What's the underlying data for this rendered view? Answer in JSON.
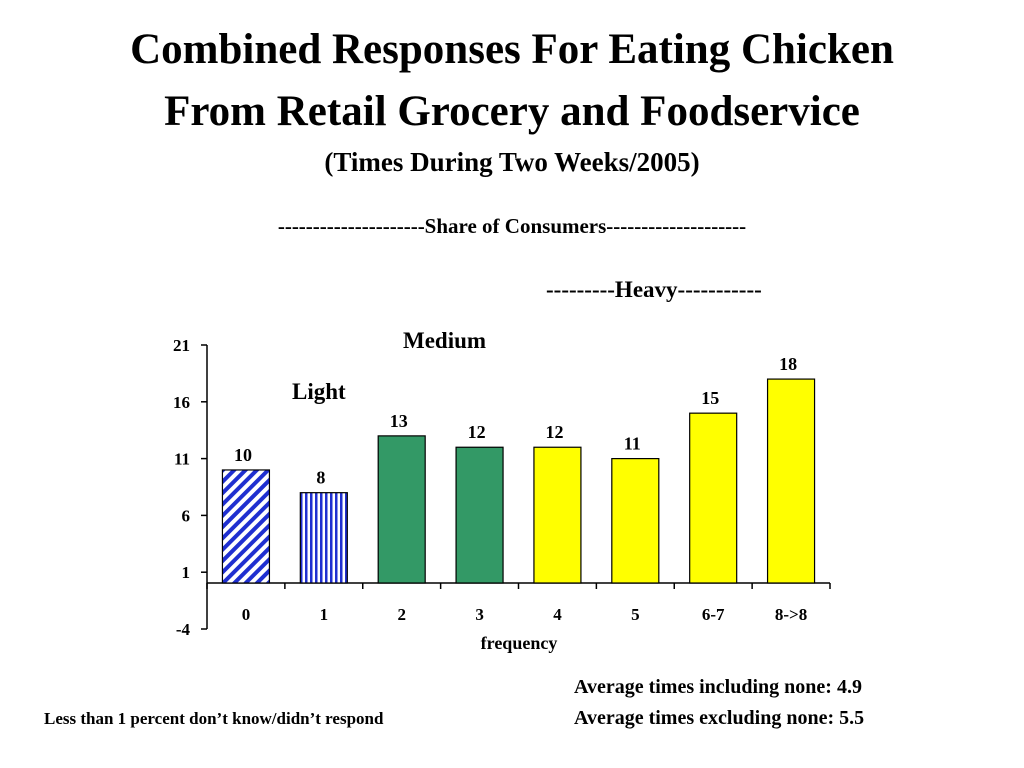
{
  "title_line1": "Combined Responses For Eating Chicken",
  "title_line2": "From Retail Grocery and Foodservice",
  "subtitle": "(Times During Two Weeks/2005)",
  "share_header": "---------------------Share of Consumers--------------------",
  "heavy_header": "---------Heavy-----------",
  "footnote": "Less than 1 percent don’t know/didn’t respond",
  "average_including": "Average times including none: 4.9",
  "average_excluding": "Average times excluding none: 5.5",
  "colors": {
    "light": "#1f2fd0",
    "medium": "#339966",
    "heavy": "#ffff00",
    "outline": "#000000"
  },
  "chart_data": {
    "type": "bar",
    "xlabel": "frequency",
    "ylabel": "",
    "ylim": [
      -4,
      21
    ],
    "yticks": [
      -4,
      1,
      6,
      11,
      16,
      21
    ],
    "categories": [
      "0",
      "1",
      "2",
      "3",
      "4",
      "5",
      "6-7",
      "8->8"
    ],
    "values": [
      10,
      8,
      13,
      12,
      12,
      11,
      15,
      18
    ],
    "data_labels": [
      "10",
      "8",
      "13",
      "12",
      "12",
      "11",
      "15",
      "18"
    ],
    "groups": [
      "light",
      "light",
      "medium",
      "medium",
      "heavy",
      "heavy",
      "heavy",
      "heavy"
    ],
    "patterns": [
      "diagonal-stripes",
      "vertical-stripes",
      "solid",
      "solid",
      "solid",
      "solid",
      "solid",
      "solid"
    ],
    "annotations": {
      "light": "Light",
      "medium": "Medium"
    },
    "grid": false,
    "legend": "none"
  }
}
